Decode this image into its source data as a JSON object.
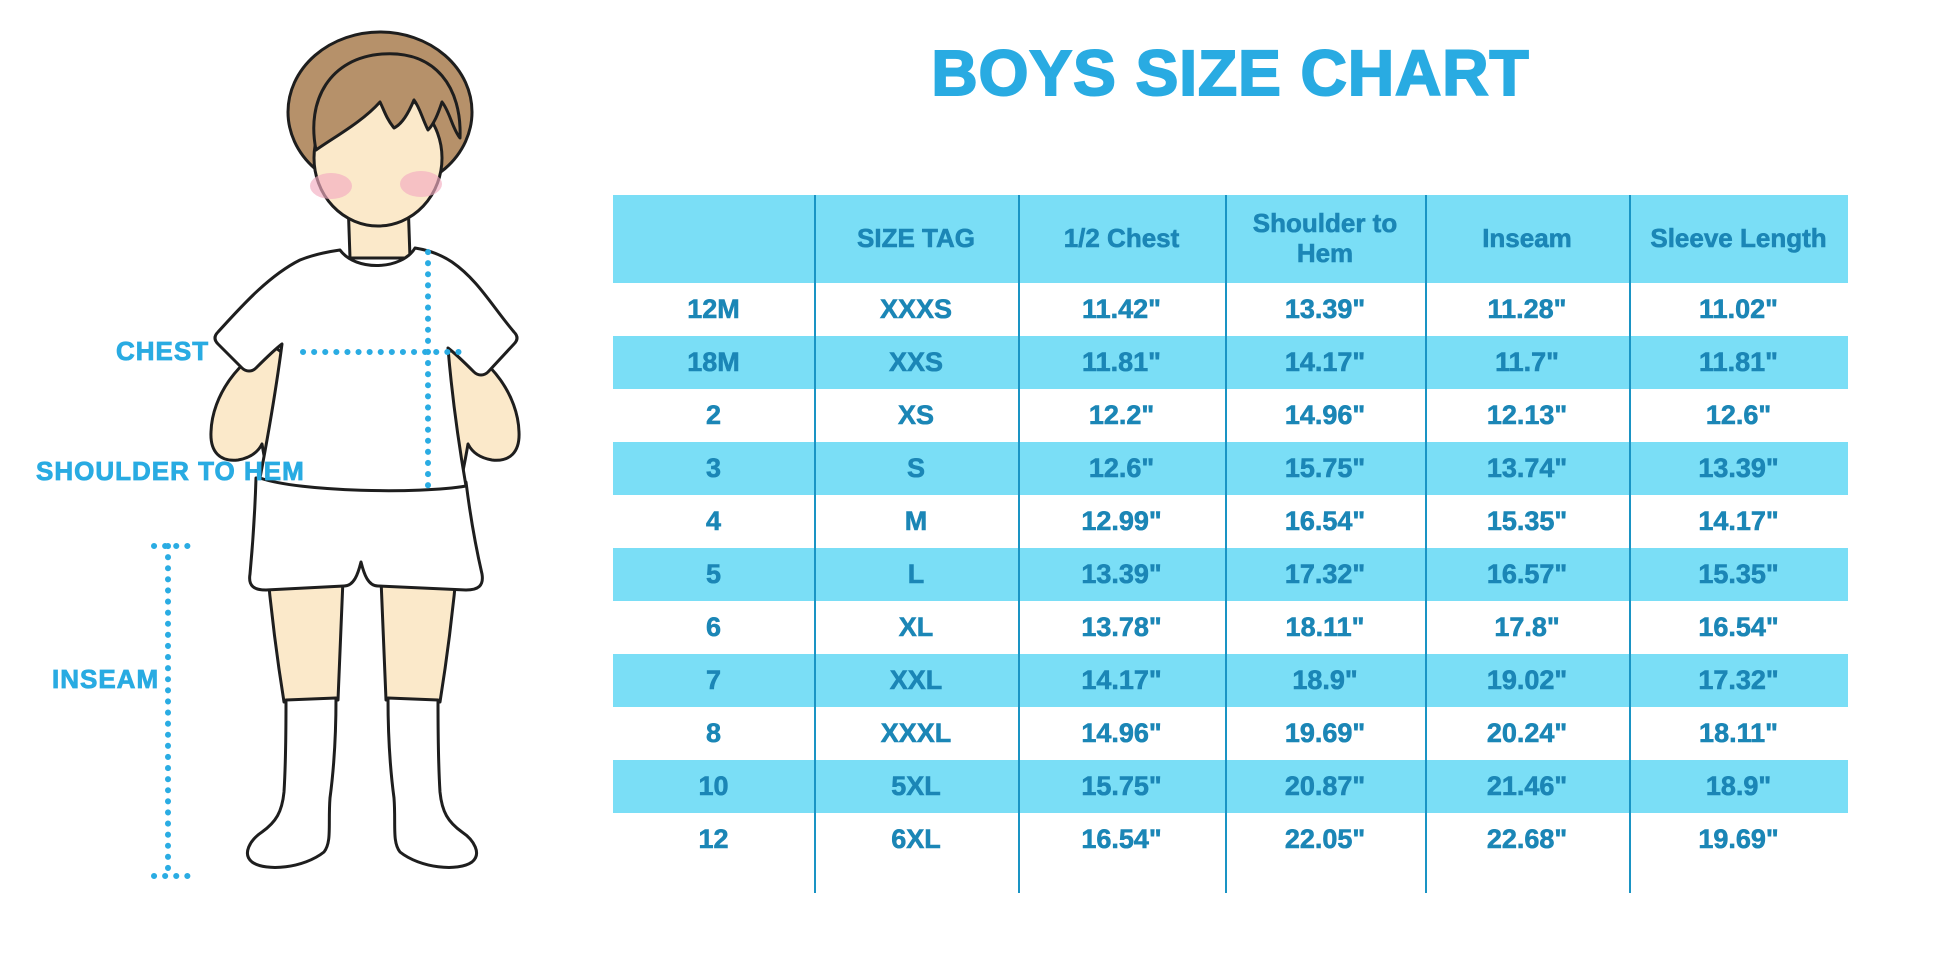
{
  "title": "BOYS SIZE CHART",
  "measurement_labels": {
    "chest": "CHEST",
    "shoulder_to_hem": "SHOULDER TO HEM",
    "inseam": "INSEAM"
  },
  "illustration": {
    "description": "cartoon boy with hands on hips wearing white t-shirt, white shorts and knee socks, with dotted measurement lines for chest, shoulder-to-hem and inseam",
    "colors": {
      "skin": "#FBE9CA",
      "hair": "#B6916A",
      "blush": "#F3ACC0",
      "garment": "#FFFFFF",
      "outline": "#1E1E1E",
      "dotted_line": "#2AACE3"
    }
  },
  "chart_data": {
    "type": "table",
    "title": "BOYS SIZE CHART",
    "columns": [
      "",
      "SIZE TAG",
      "1/2 Chest",
      "Shoulder to Hem",
      "Inseam",
      "Sleeve Length"
    ],
    "rows": [
      [
        "12M",
        "XXXS",
        "11.42\"",
        "13.39\"",
        "11.28\"",
        "11.02\""
      ],
      [
        "18M",
        "XXS",
        "11.81\"",
        "14.17\"",
        "11.7\"",
        "11.81\""
      ],
      [
        "2",
        "XS",
        "12.2\"",
        "14.96\"",
        "12.13\"",
        "12.6\""
      ],
      [
        "3",
        "S",
        "12.6\"",
        "15.75\"",
        "13.74\"",
        "13.39\""
      ],
      [
        "4",
        "M",
        "12.99\"",
        "16.54\"",
        "15.35\"",
        "14.17\""
      ],
      [
        "5",
        "L",
        "13.39\"",
        "17.32\"",
        "16.57\"",
        "15.35\""
      ],
      [
        "6",
        "XL",
        "13.78\"",
        "18.11\"",
        "17.8\"",
        "16.54\""
      ],
      [
        "7",
        "XXL",
        "14.17\"",
        "18.9\"",
        "19.02\"",
        "17.32\""
      ],
      [
        "8",
        "XXXL",
        "14.96\"",
        "19.69\"",
        "20.24\"",
        "18.11\""
      ],
      [
        "10",
        "5XL",
        "15.75\"",
        "20.87\"",
        "21.46\"",
        "18.9\""
      ],
      [
        "12",
        "6XL",
        "16.54\"",
        "22.05\"",
        "22.68\"",
        "19.69\""
      ]
    ],
    "striped_row_indices": [
      1,
      3,
      5,
      7,
      9
    ],
    "layout": {
      "header_background": "#7ADEF6",
      "stripe_background": "#7ADEF6",
      "plain_background": "#FFFFFF",
      "text_color": "#1B86B6",
      "grid_line_color": "#1A94C4",
      "title_color": "#29ABE2",
      "outer_border": "none",
      "horizontal_lines": "none"
    }
  }
}
